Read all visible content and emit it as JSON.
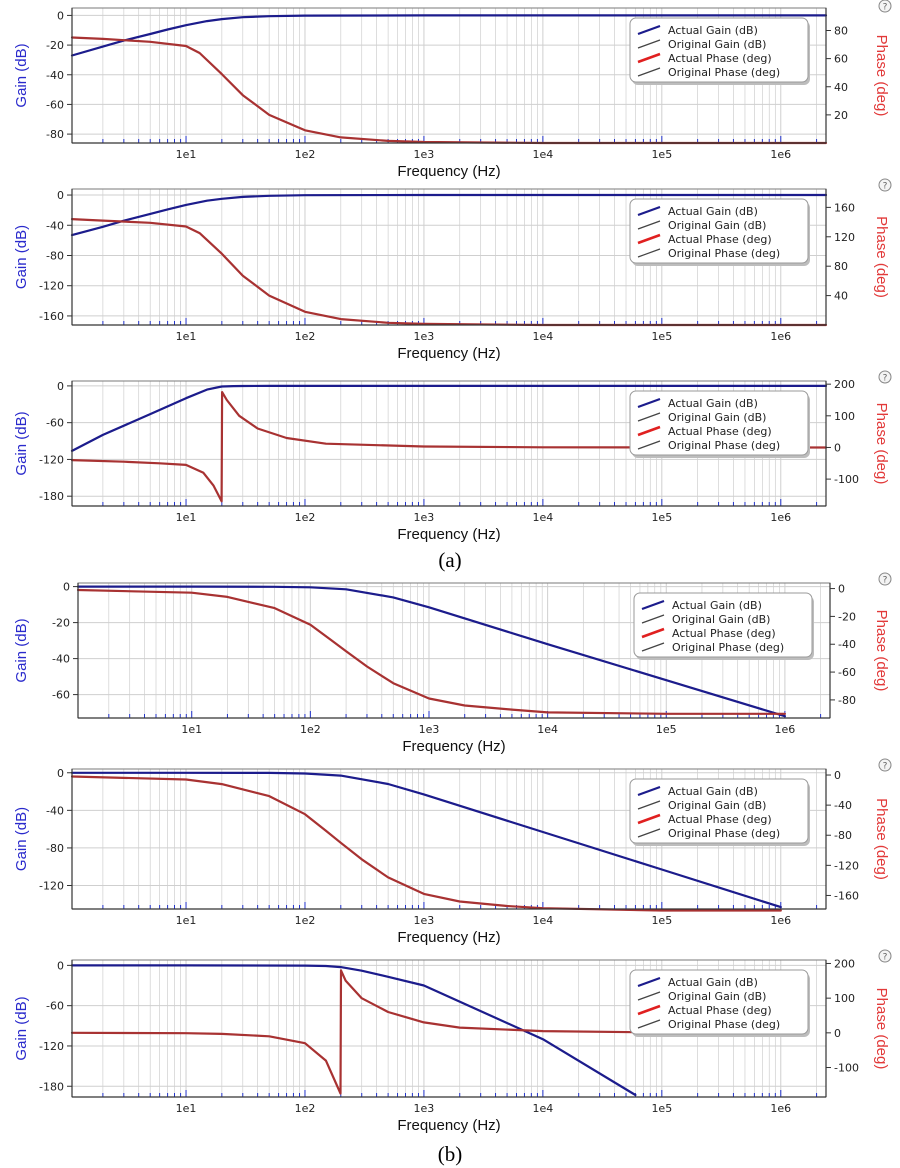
{
  "colors": {
    "gain": "#1c1c8c",
    "phase": "#a83232",
    "actual_phase_legend": "#e02020",
    "original_legend": "#444444",
    "gain_axis_label": "#2a2acc",
    "phase_axis_label": "#e23a3a",
    "grid": "#cfcfcf",
    "x_tick_marks": "#2233cc"
  },
  "captions": [
    "(a)",
    "(b)"
  ],
  "chart_data": [
    {
      "type": "line",
      "group": "(a)",
      "help_icon": "help-circle-icon",
      "xlabel": "Frequency (Hz)",
      "ylabel": "Gain (dB)",
      "y2label": "Phase (deg)",
      "xscale": "log",
      "xlim": [
        1.1,
        2400000
      ],
      "xticks": [
        "1e1",
        "1e2",
        "1e3",
        "1e4",
        "1e5",
        "1e6"
      ],
      "ylim": [
        -86,
        5
      ],
      "yticks": [
        0,
        -20,
        -40,
        -60,
        -80
      ],
      "y2lim": [
        0,
        96
      ],
      "y2ticks": [
        80,
        60,
        40,
        20
      ],
      "legend": [
        "Actual Gain (dB)",
        "Original Gain (dB)",
        "Actual Phase (deg)",
        "Original Phase (deg)"
      ],
      "legend_position": "top-right",
      "series": [
        {
          "name": "Actual Gain (dB)",
          "axis": "y",
          "x": [
            1.1,
            2,
            3,
            5,
            7,
            10,
            15,
            20,
            30,
            50,
            100,
            1000,
            2400000
          ],
          "y": [
            -27,
            -21,
            -17,
            -12.5,
            -9.5,
            -6.6,
            -3.8,
            -2.5,
            -1.2,
            -0.5,
            -0.1,
            0,
            0
          ]
        },
        {
          "name": "Original Gain (dB)",
          "axis": "y",
          "x": [
            1.1,
            2,
            3,
            5,
            7,
            10,
            15,
            20,
            30,
            50,
            100,
            1000,
            2400000
          ],
          "y": [
            -27,
            -21,
            -17,
            -12.5,
            -9.5,
            -6.6,
            -3.8,
            -2.5,
            -1.2,
            -0.5,
            -0.1,
            0,
            0
          ]
        },
        {
          "name": "Actual Phase (deg)",
          "axis": "y2",
          "x": [
            1.1,
            2,
            5,
            10,
            13,
            20,
            30,
            50,
            100,
            200,
            500,
            1000,
            10000,
            100000,
            2400000
          ],
          "y": [
            75,
            74,
            72,
            69,
            64,
            49,
            34,
            20,
            9,
            4,
            1.5,
            0.7,
            0,
            0,
            0
          ]
        },
        {
          "name": "Original Phase (deg)",
          "axis": "y2",
          "x": [
            1.1,
            2,
            5,
            10,
            13,
            20,
            30,
            50,
            100,
            200,
            500,
            1000,
            10000,
            100000,
            2400000
          ],
          "y": [
            75,
            74,
            72,
            69,
            64,
            49,
            34,
            20,
            9,
            4,
            1.5,
            0.7,
            0,
            0,
            0
          ]
        }
      ]
    },
    {
      "type": "line",
      "group": "(a)",
      "help_icon": "help-circle-icon",
      "xlabel": "Frequency (Hz)",
      "ylabel": "Gain (dB)",
      "y2label": "Phase (deg)",
      "xscale": "log",
      "xlim": [
        1.1,
        2400000
      ],
      "xticks": [
        "1e1",
        "1e2",
        "1e3",
        "1e4",
        "1e5",
        "1e6"
      ],
      "ylim": [
        -172,
        8
      ],
      "yticks": [
        0,
        -40,
        -80,
        -120,
        -160
      ],
      "y2lim": [
        0,
        185
      ],
      "y2ticks": [
        160,
        120,
        80,
        40
      ],
      "legend": [
        "Actual Gain (dB)",
        "Original Gain (dB)",
        "Actual Phase (deg)",
        "Original Phase (deg)"
      ],
      "legend_position": "top-right",
      "series": [
        {
          "name": "Actual Gain (dB)",
          "axis": "y",
          "x": [
            1.1,
            2,
            3,
            5,
            7,
            10,
            15,
            20,
            30,
            50,
            100,
            1000,
            2400000
          ],
          "y": [
            -53,
            -42,
            -34,
            -25,
            -19,
            -13,
            -7.5,
            -5,
            -2.4,
            -1,
            -0.2,
            0,
            0
          ]
        },
        {
          "name": "Original Gain (dB)",
          "axis": "y",
          "x": [
            1.1,
            2,
            3,
            5,
            7,
            10,
            15,
            20,
            30,
            50,
            100,
            1000,
            2400000
          ],
          "y": [
            -53,
            -42,
            -34,
            -25,
            -19,
            -13,
            -7.5,
            -5,
            -2.4,
            -1,
            -0.2,
            0,
            0
          ]
        },
        {
          "name": "Actual Phase (deg)",
          "axis": "y2",
          "x": [
            1.1,
            2,
            5,
            10,
            13,
            20,
            30,
            50,
            100,
            200,
            500,
            1000,
            10000,
            100000,
            2400000
          ],
          "y": [
            144,
            142,
            139,
            134,
            125,
            97,
            67,
            40,
            18,
            8,
            3,
            1.5,
            0,
            0,
            0
          ]
        },
        {
          "name": "Original Phase (deg)",
          "axis": "y2",
          "x": [
            1.1,
            2,
            5,
            10,
            13,
            20,
            30,
            50,
            100,
            200,
            500,
            1000,
            10000,
            100000,
            2400000
          ],
          "y": [
            144,
            142,
            139,
            134,
            125,
            97,
            67,
            40,
            18,
            8,
            3,
            1.5,
            0,
            0,
            0
          ]
        }
      ]
    },
    {
      "type": "line",
      "group": "(a)",
      "help_icon": "help-circle-icon",
      "xlabel": "Frequency (Hz)",
      "ylabel": "Gain (dB)",
      "y2label": "Phase (deg)",
      "xscale": "log",
      "xlim": [
        1.1,
        2400000
      ],
      "xticks": [
        "1e1",
        "1e2",
        "1e3",
        "1e4",
        "1e5",
        "1e6"
      ],
      "ylim": [
        -196,
        8
      ],
      "yticks": [
        0,
        -60,
        -120,
        -180
      ],
      "y2lim": [
        -185,
        210
      ],
      "y2ticks": [
        200,
        100,
        0,
        -100
      ],
      "legend": [
        "Actual Gain (dB)",
        "Original Gain (dB)",
        "Actual Phase (deg)",
        "Original Phase (deg)"
      ],
      "legend_position": "top-right",
      "series": [
        {
          "name": "Actual Gain (dB)",
          "axis": "y",
          "x": [
            1.1,
            2,
            5,
            10,
            15,
            20,
            25,
            30,
            50,
            100,
            1000,
            2400000
          ],
          "y": [
            -106,
            -80,
            -46,
            -20,
            -6,
            -1,
            -0.3,
            -0.1,
            0,
            0,
            0,
            0
          ]
        },
        {
          "name": "Original Gain (dB)",
          "axis": "y",
          "x": [
            1.1,
            2,
            5,
            10,
            15,
            20,
            25,
            30,
            50,
            100,
            1000,
            2400000
          ],
          "y": [
            -106,
            -80,
            -46,
            -20,
            -6,
            -1,
            -0.3,
            -0.1,
            0,
            0,
            0,
            0
          ]
        },
        {
          "name": "Actual Phase (deg)",
          "axis": "y2",
          "x": [
            1.1,
            3,
            6,
            10,
            14,
            17,
            19.9,
            20.1,
            22,
            28,
            40,
            70,
            150,
            1000,
            10000,
            2400000
          ],
          "y": [
            -40,
            -45,
            -50,
            -55,
            -80,
            -120,
            -170,
            175,
            150,
            100,
            60,
            30,
            12,
            3,
            0.5,
            0
          ]
        },
        {
          "name": "Original Phase (deg)",
          "axis": "y2",
          "x": [
            1.1,
            3,
            6,
            10,
            14,
            17,
            19.9,
            20.1,
            22,
            28,
            40,
            70,
            150,
            1000,
            10000,
            2400000
          ],
          "y": [
            -40,
            -45,
            -50,
            -55,
            -80,
            -120,
            -170,
            175,
            150,
            100,
            60,
            30,
            12,
            3,
            0.5,
            0
          ]
        }
      ]
    },
    {
      "type": "line",
      "group": "(b)",
      "help_icon": "help-circle-icon",
      "xlabel": "Frequency (Hz)",
      "ylabel": "Gain (dB)",
      "y2label": "Phase (deg)",
      "xscale": "log",
      "xlim": [
        1.1,
        2400000
      ],
      "xticks": [
        "1e1",
        "1e2",
        "1e3",
        "1e4",
        "1e5",
        "1e6"
      ],
      "ylim": [
        -73,
        2
      ],
      "yticks": [
        0,
        -20,
        -40,
        -60
      ],
      "y2lim": [
        -93,
        4
      ],
      "y2ticks": [
        0,
        -20,
        -40,
        -60,
        -80
      ],
      "legend": [
        "Actual Gain (dB)",
        "Original Gain (dB)",
        "Actual Phase (deg)",
        "Original Phase (deg)"
      ],
      "legend_position": "top-right",
      "series": [
        {
          "name": "Actual Gain (dB)",
          "axis": "y",
          "x": [
            1.1,
            10,
            50,
            100,
            200,
            500,
            1000,
            10000,
            100000,
            1000000
          ],
          "y": [
            0,
            0,
            -0.1,
            -0.4,
            -1.5,
            -6,
            -11.5,
            -32,
            -52,
            -72
          ]
        },
        {
          "name": "Original Gain (dB)",
          "axis": "y",
          "x": [
            1.1,
            10,
            50,
            100,
            200,
            500,
            1000,
            10000,
            100000,
            1000000
          ],
          "y": [
            0,
            0,
            -0.1,
            -0.4,
            -1.5,
            -6,
            -11.5,
            -32,
            -52,
            -72
          ]
        },
        {
          "name": "Actual Phase (deg)",
          "axis": "y2",
          "x": [
            1.1,
            10,
            20,
            50,
            100,
            150,
            200,
            300,
            500,
            1000,
            2000,
            5000,
            10000,
            100000,
            1000000
          ],
          "y": [
            -1,
            -3,
            -6,
            -14,
            -26,
            -37,
            -45,
            -56,
            -68,
            -79,
            -84,
            -87,
            -89,
            -90,
            -90
          ]
        },
        {
          "name": "Original Phase (deg)",
          "axis": "y2",
          "x": [
            1.1,
            10,
            20,
            50,
            100,
            150,
            200,
            300,
            500,
            1000,
            2000,
            5000,
            10000,
            100000,
            1000000
          ],
          "y": [
            -1,
            -3,
            -6,
            -14,
            -26,
            -37,
            -45,
            -56,
            -68,
            -79,
            -84,
            -87,
            -89,
            -90,
            -90
          ]
        }
      ]
    },
    {
      "type": "line",
      "group": "(b)",
      "help_icon": "help-circle-icon",
      "xlabel": "Frequency (Hz)",
      "ylabel": "Gain (dB)",
      "y2label": "Phase (deg)",
      "xscale": "log",
      "xlim": [
        1.1,
        2400000
      ],
      "xticks": [
        "1e1",
        "1e2",
        "1e3",
        "1e4",
        "1e5",
        "1e6"
      ],
      "ylim": [
        -145,
        4
      ],
      "yticks": [
        0,
        -40,
        -80,
        -120
      ],
      "y2lim": [
        -178,
        8
      ],
      "y2ticks": [
        0,
        -40,
        -80,
        -120,
        -160
      ],
      "legend": [
        "Actual Gain (dB)",
        "Original Gain (dB)",
        "Actual Phase (deg)",
        "Original Phase (deg)"
      ],
      "legend_position": "top-right",
      "series": [
        {
          "name": "Actual Gain (dB)",
          "axis": "y",
          "x": [
            1.1,
            10,
            50,
            100,
            200,
            500,
            1000,
            10000,
            100000,
            1000000
          ],
          "y": [
            0,
            0,
            -0.2,
            -0.8,
            -3,
            -12,
            -23,
            -63,
            -103,
            -143
          ]
        },
        {
          "name": "Original Gain (dB)",
          "axis": "y",
          "x": [
            1.1,
            10,
            50,
            100,
            200,
            500,
            1000,
            10000,
            100000,
            1000000
          ],
          "y": [
            0,
            0,
            -0.2,
            -0.8,
            -3,
            -12,
            -23,
            -63,
            -103,
            -143
          ]
        },
        {
          "name": "Actual Phase (deg)",
          "axis": "y2",
          "x": [
            1.1,
            10,
            20,
            50,
            100,
            150,
            200,
            300,
            500,
            1000,
            2000,
            5000,
            10000,
            100000,
            1000000
          ],
          "y": [
            -2,
            -6,
            -12,
            -28,
            -52,
            -74,
            -90,
            -112,
            -136,
            -158,
            -168,
            -174,
            -177,
            -180,
            -180
          ]
        },
        {
          "name": "Original Phase (deg)",
          "axis": "y2",
          "x": [
            1.1,
            10,
            20,
            50,
            100,
            150,
            200,
            300,
            500,
            1000,
            2000,
            5000,
            10000,
            100000,
            1000000
          ],
          "y": [
            -2,
            -6,
            -12,
            -28,
            -52,
            -74,
            -90,
            -112,
            -136,
            -158,
            -168,
            -174,
            -177,
            -180,
            -180
          ]
        }
      ]
    },
    {
      "type": "line",
      "group": "(b)",
      "help_icon": "help-circle-icon",
      "xlabel": "Frequency (Hz)",
      "ylabel": "Gain (dB)",
      "y2label": "Phase (deg)",
      "xscale": "log",
      "xlim": [
        1.1,
        2400000
      ],
      "xticks": [
        "1e1",
        "1e2",
        "1e3",
        "1e4",
        "1e5",
        "1e6"
      ],
      "ylim": [
        -196,
        8
      ],
      "yticks": [
        0,
        -60,
        -120,
        -180
      ],
      "y2lim": [
        -185,
        210
      ],
      "y2ticks": [
        200,
        100,
        0,
        -100
      ],
      "legend": [
        "Actual Gain (dB)",
        "Original Gain (dB)",
        "Actual Phase (deg)",
        "Original Phase (deg)"
      ],
      "legend_position": "top-right",
      "series": [
        {
          "name": "Actual Gain (dB)",
          "axis": "y",
          "x": [
            1.1,
            10,
            100,
            150,
            200,
            300,
            500,
            1000,
            10000,
            60000
          ],
          "y": [
            0,
            0,
            -0.3,
            -1,
            -2.5,
            -8,
            -17,
            -30,
            -110,
            -193
          ]
        },
        {
          "name": "Original Gain (dB)",
          "axis": "y",
          "x": [
            1.1,
            10,
            100,
            150,
            200,
            300,
            500,
            1000,
            10000,
            60000
          ],
          "y": [
            0,
            0,
            -0.3,
            -1,
            -2.5,
            -8,
            -17,
            -30,
            -110,
            -193
          ]
        },
        {
          "name": "Actual Phase (deg)",
          "axis": "y2",
          "x": [
            1.1,
            10,
            20,
            50,
            100,
            150,
            199,
            201,
            220,
            300,
            500,
            1000,
            2000,
            10000,
            100000
          ],
          "y": [
            0,
            -1,
            -3,
            -10,
            -30,
            -80,
            -175,
            180,
            150,
            100,
            60,
            30,
            15,
            5,
            1
          ]
        },
        {
          "name": "Original Phase (deg)",
          "axis": "y2",
          "x": [
            1.1,
            10,
            20,
            50,
            100,
            150,
            199,
            201,
            220,
            300,
            500,
            1000,
            2000,
            10000,
            100000
          ],
          "y": [
            0,
            -1,
            -3,
            -10,
            -30,
            -80,
            -175,
            180,
            150,
            100,
            60,
            30,
            15,
            5,
            1
          ]
        }
      ]
    }
  ]
}
